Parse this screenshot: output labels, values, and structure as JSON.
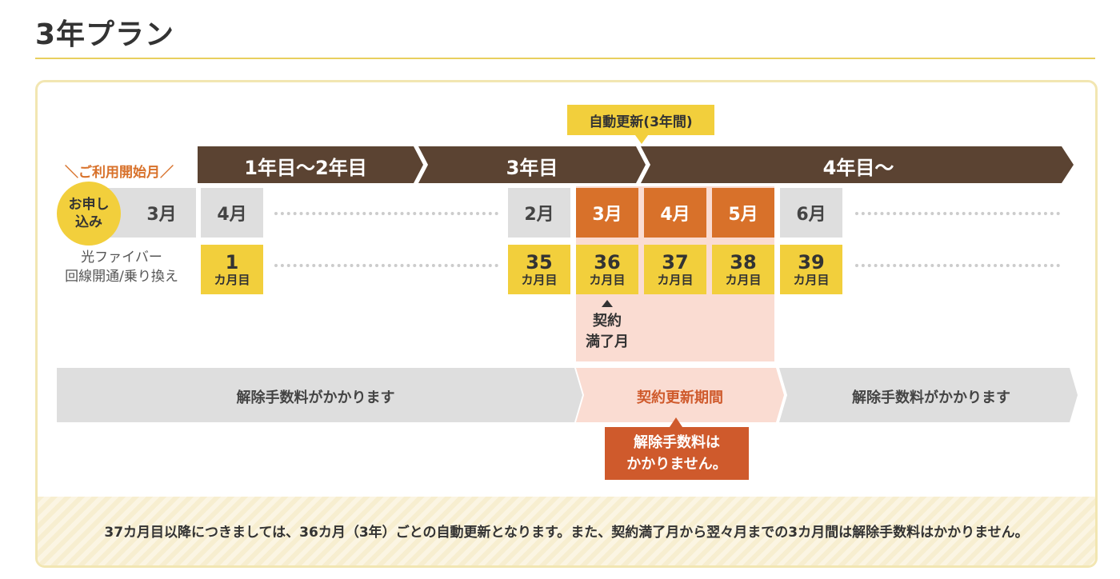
{
  "page": {
    "title": "3年プラン"
  },
  "timeline": {
    "callout": "自動更新(3年間)",
    "start_label": "＼ご利用開始月／",
    "segments": [
      "1年目〜2年目",
      "3年目",
      "4年目〜"
    ]
  },
  "apply": {
    "label": "お申し込み",
    "month": "3月"
  },
  "months": [
    "4月",
    "2月",
    "3月",
    "4月",
    "5月",
    "6月"
  ],
  "counts": [
    {
      "n": "1",
      "unit": "カ月目"
    },
    {
      "n": "35",
      "unit": "カ月目"
    },
    {
      "n": "36",
      "unit": "カ月目"
    },
    {
      "n": "37",
      "unit": "カ月目"
    },
    {
      "n": "38",
      "unit": "カ月目"
    },
    {
      "n": "39",
      "unit": "カ月目"
    }
  ],
  "fiber_label": [
    "光ファイバー",
    "回線開通/乗り換え"
  ],
  "contract_end": [
    "契約",
    "満了月"
  ],
  "fee_bar": {
    "left": "解除手数料がかかります",
    "middle": "契約更新期間",
    "right": "解除手数料がかかります"
  },
  "no_fee": [
    "解除手数料は",
    "かかりません。"
  ],
  "footer": "37カ月目以降につきましては、36カ月（3年）ごとの自動更新となります。また、契約満了月から翌々月までの3カ月間は解除手数料はかかりません。",
  "colors": {
    "brown": "#5b4332",
    "orange": "#d8712a",
    "yellow": "#f2cf3c",
    "gray": "#dedede",
    "pink": "#fadcd2",
    "red": "#cf5a2c"
  }
}
